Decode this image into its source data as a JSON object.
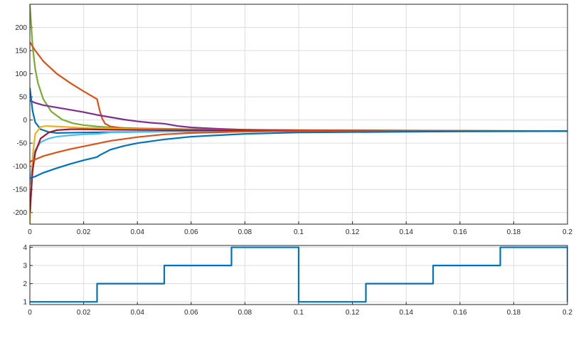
{
  "chart_data": [
    {
      "type": "line",
      "xlim": [
        0,
        0.2
      ],
      "ylim": [
        -225,
        250
      ],
      "xticks": [
        "0",
        "0.02",
        "0.04",
        "0.06",
        "0.08",
        "0.1",
        "0.12",
        "0.14",
        "0.16",
        "0.18",
        "0.2"
      ],
      "yticks": [
        "-200",
        "-150",
        "-100",
        "-50",
        "0",
        "50",
        "100",
        "150",
        "200"
      ],
      "grid": true,
      "series": [
        {
          "color": "#77ac30",
          "x": [
            0,
            0.001,
            0.002,
            0.003,
            0.005,
            0.008,
            0.012,
            0.016,
            0.02,
            0.025,
            0.03,
            0.04,
            0.06,
            0.1,
            0.2
          ],
          "y": [
            250,
            160,
            110,
            80,
            45,
            18,
            1,
            -7,
            -11,
            -14,
            -16,
            -18,
            -20,
            -22,
            -24
          ]
        },
        {
          "color": "#d95319",
          "x": [
            0,
            0.002,
            0.005,
            0.01,
            0.015,
            0.02,
            0.025,
            0.026,
            0.027,
            0.028,
            0.03,
            0.035,
            0.05,
            0.1,
            0.2
          ],
          "y": [
            168,
            150,
            127,
            100,
            80,
            62,
            45,
            20,
            2,
            -8,
            -14,
            -18,
            -20,
            -22,
            -24
          ]
        },
        {
          "color": "#7e2f8e",
          "x": [
            0,
            0.002,
            0.005,
            0.01,
            0.015,
            0.02,
            0.025,
            0.03,
            0.035,
            0.04,
            0.045,
            0.05,
            0.055,
            0.06,
            0.07,
            0.08,
            0.1,
            0.15,
            0.2
          ],
          "y": [
            42,
            37,
            32,
            27,
            22,
            17,
            11,
            6,
            1,
            -3,
            -6,
            -8,
            -13,
            -16,
            -19,
            -21,
            -23,
            -24,
            -24
          ]
        },
        {
          "color": "#0072bd",
          "x": [
            0,
            0.001,
            0.002,
            0.004,
            0.007,
            0.01,
            0.02,
            0.05,
            0.1,
            0.2
          ],
          "y": [
            70,
            20,
            -5,
            -20,
            -26,
            -28,
            -27,
            -25,
            -24,
            -24
          ]
        },
        {
          "color": "#4dbeee",
          "x": [
            0,
            0.001,
            0.002,
            0.004,
            0.007,
            0.01,
            0.015,
            0.02,
            0.025,
            0.03,
            0.05,
            0.1,
            0.2
          ],
          "y": [
            -140,
            -90,
            -65,
            -48,
            -40,
            -36,
            -33,
            -31,
            -30,
            -27,
            -25,
            -24,
            -24
          ]
        },
        {
          "color": "#edb120",
          "x": [
            0,
            0.001,
            0.002,
            0.004,
            0.006,
            0.01,
            0.02,
            0.05,
            0.1,
            0.2
          ],
          "y": [
            -225,
            -80,
            -30,
            -15,
            -13,
            -14,
            -17,
            -21,
            -23,
            -24
          ]
        },
        {
          "color": "#a2142f",
          "x": [
            0,
            0.001,
            0.002,
            0.004,
            0.007,
            0.01,
            0.015,
            0.02,
            0.03,
            0.05,
            0.1,
            0.2
          ],
          "y": [
            -200,
            -110,
            -70,
            -40,
            -27,
            -22,
            -20,
            -20,
            -21,
            -22,
            -23,
            -24
          ]
        },
        {
          "color": "#d95319",
          "x": [
            0,
            0.005,
            0.01,
            0.015,
            0.02,
            0.025,
            0.03,
            0.04,
            0.05,
            0.06,
            0.08,
            0.1,
            0.15,
            0.2
          ],
          "y": [
            -90,
            -78,
            -70,
            -63,
            -57,
            -51,
            -45,
            -37,
            -31,
            -28,
            -25,
            -24,
            -24,
            -24
          ]
        },
        {
          "color": "#0072bd",
          "x": [
            0,
            0.002,
            0.005,
            0.01,
            0.015,
            0.02,
            0.025,
            0.026,
            0.028,
            0.03,
            0.035,
            0.04,
            0.05,
            0.06,
            0.08,
            0.1,
            0.15,
            0.2
          ],
          "y": [
            -126,
            -122,
            -114,
            -104,
            -95,
            -87,
            -80,
            -76,
            -70,
            -64,
            -56,
            -50,
            -42,
            -36,
            -30,
            -27,
            -25,
            -24
          ]
        }
      ]
    },
    {
      "type": "line",
      "xlim": [
        0,
        0.2
      ],
      "ylim": [
        0.85,
        4.1
      ],
      "xticks": [
        "0",
        "0.02",
        "0.04",
        "0.06",
        "0.08",
        "0.1",
        "0.12",
        "0.14",
        "0.16",
        "0.18",
        "0.2"
      ],
      "yticks": [
        "1",
        "2",
        "3",
        "4"
      ],
      "grid": true,
      "series": [
        {
          "color": "#0072bd",
          "x": [
            0,
            0.025,
            0.025,
            0.05,
            0.05,
            0.075,
            0.075,
            0.1,
            0.1,
            0.125,
            0.125,
            0.15,
            0.15,
            0.175,
            0.175,
            0.2,
            0.2
          ],
          "y": [
            1,
            1,
            2,
            2,
            3,
            3,
            4,
            4,
            1,
            1,
            2,
            2,
            3,
            3,
            4,
            4,
            1
          ]
        }
      ]
    }
  ]
}
